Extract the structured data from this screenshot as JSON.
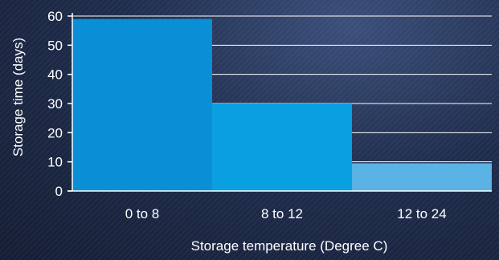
{
  "chart_data": {
    "type": "bar",
    "categories": [
      "0 to 8",
      "8 to 12",
      "12 to 24"
    ],
    "values": [
      59,
      30,
      9.5
    ],
    "xlabel": "Storage temperature (Degree C)",
    "ylabel": "Storage time (days)",
    "ylim": [
      0,
      60
    ],
    "yticks": [
      0,
      10,
      20,
      30,
      40,
      50,
      60
    ],
    "grid": true,
    "colors": [
      "#0a8fd6",
      "#0a9fe0",
      "#5ab3e4"
    ],
    "background": "#1f2d4d"
  }
}
